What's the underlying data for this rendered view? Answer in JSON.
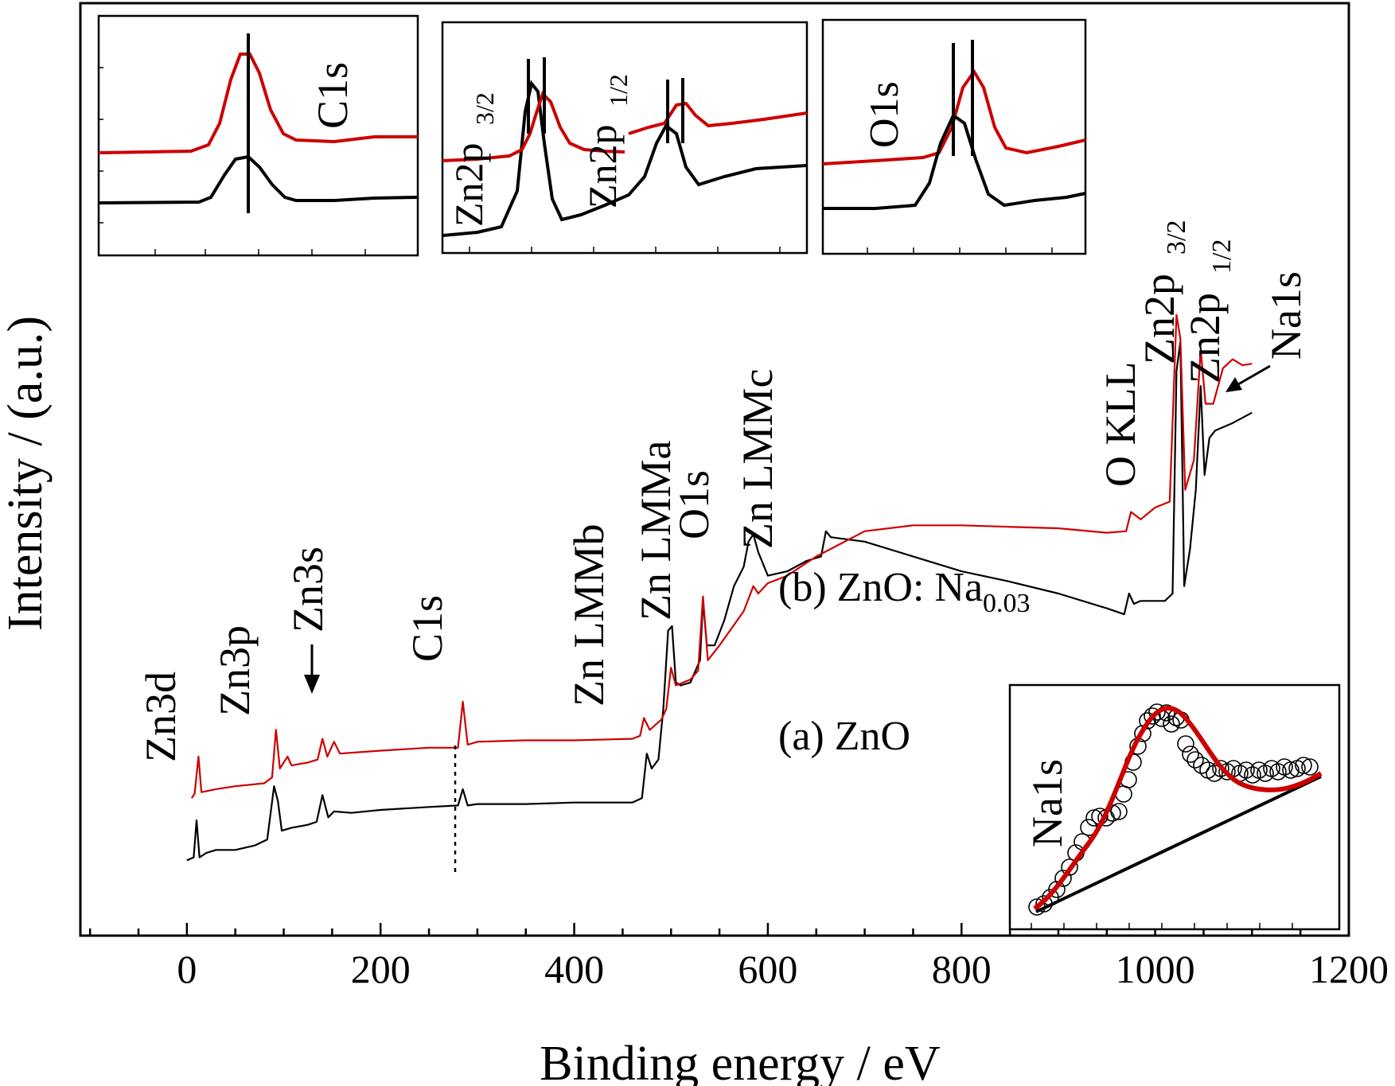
{
  "chart_data": {
    "type": "line",
    "xlabel": "Binding energy / eV",
    "ylabel": "Intensity / (a.u.)",
    "xlim": [
      -110,
      1200
    ],
    "x_ticks": [
      0,
      200,
      400,
      600,
      800,
      1000,
      1200
    ],
    "y_scale": "arbitrary units, no tick labels",
    "grid": false,
    "series": [
      {
        "name": "(a) ZnO",
        "color": "#000000",
        "points": [
          [
            0,
            0.1
          ],
          [
            7,
            0.12
          ],
          [
            10,
            0.37
          ],
          [
            13,
            0.12
          ],
          [
            20,
            0.15
          ],
          [
            30,
            0.17
          ],
          [
            50,
            0.17
          ],
          [
            70,
            0.2
          ],
          [
            83,
            0.24
          ],
          [
            90,
            0.6
          ],
          [
            94,
            0.5
          ],
          [
            98,
            0.3
          ],
          [
            108,
            0.32
          ],
          [
            125,
            0.34
          ],
          [
            134,
            0.36
          ],
          [
            140,
            0.54
          ],
          [
            146,
            0.39
          ],
          [
            152,
            0.43
          ],
          [
            170,
            0.42
          ],
          [
            200,
            0.44
          ],
          [
            250,
            0.46
          ],
          [
            280,
            0.47
          ],
          [
            285,
            0.58
          ],
          [
            290,
            0.47
          ],
          [
            300,
            0.48
          ],
          [
            350,
            0.48
          ],
          [
            400,
            0.49
          ],
          [
            460,
            0.49
          ],
          [
            470,
            0.52
          ],
          [
            475,
            0.82
          ],
          [
            480,
            0.72
          ],
          [
            487,
            0.78
          ],
          [
            492,
            1.12
          ],
          [
            497,
            1.65
          ],
          [
            501,
            1.68
          ],
          [
            505,
            1.3
          ],
          [
            510,
            1.28
          ],
          [
            520,
            1.3
          ],
          [
            530,
            1.45
          ],
          [
            533,
            1.85
          ],
          [
            537,
            1.55
          ],
          [
            545,
            1.55
          ],
          [
            555,
            1.72
          ],
          [
            565,
            1.95
          ],
          [
            575,
            2.08
          ],
          [
            580,
            2.25
          ],
          [
            585,
            2.3
          ],
          [
            590,
            2.18
          ],
          [
            600,
            2.02
          ],
          [
            620,
            2.05
          ],
          [
            640,
            2.12
          ],
          [
            655,
            2.15
          ],
          [
            660,
            2.32
          ],
          [
            665,
            2.28
          ],
          [
            700,
            2.25
          ],
          [
            750,
            2.15
          ],
          [
            800,
            2.05
          ],
          [
            850,
            1.98
          ],
          [
            900,
            1.9
          ],
          [
            950,
            1.8
          ],
          [
            968,
            1.76
          ],
          [
            973,
            1.9
          ],
          [
            978,
            1.83
          ],
          [
            985,
            1.85
          ],
          [
            1010,
            1.85
          ],
          [
            1018,
            1.9
          ],
          [
            1022,
            3.4
          ],
          [
            1026,
            3.6
          ],
          [
            1030,
            1.95
          ],
          [
            1036,
            2.2
          ],
          [
            1042,
            2.6
          ],
          [
            1047,
            3.3
          ],
          [
            1051,
            2.7
          ],
          [
            1056,
            2.95
          ],
          [
            1062,
            3.0
          ],
          [
            1080,
            3.05
          ],
          [
            1100,
            3.12
          ]
        ]
      },
      {
        "name": "(b) ZnO: Na0.03",
        "color": "#cc0000",
        "points": [
          [
            5,
            0.52
          ],
          [
            8,
            0.55
          ],
          [
            12,
            0.8
          ],
          [
            15,
            0.56
          ],
          [
            30,
            0.58
          ],
          [
            50,
            0.6
          ],
          [
            80,
            0.62
          ],
          [
            88,
            0.66
          ],
          [
            92,
            0.98
          ],
          [
            96,
            0.72
          ],
          [
            104,
            0.8
          ],
          [
            108,
            0.74
          ],
          [
            125,
            0.76
          ],
          [
            135,
            0.78
          ],
          [
            140,
            0.92
          ],
          [
            145,
            0.8
          ],
          [
            152,
            0.9
          ],
          [
            158,
            0.82
          ],
          [
            200,
            0.84
          ],
          [
            250,
            0.86
          ],
          [
            280,
            0.86
          ],
          [
            285,
            1.17
          ],
          [
            290,
            0.88
          ],
          [
            300,
            0.9
          ],
          [
            350,
            0.91
          ],
          [
            400,
            0.91
          ],
          [
            460,
            0.92
          ],
          [
            468,
            0.94
          ],
          [
            472,
            1.06
          ],
          [
            478,
            0.98
          ],
          [
            490,
            1.05
          ],
          [
            495,
            1.12
          ],
          [
            500,
            1.4
          ],
          [
            505,
            1.28
          ],
          [
            520,
            1.32
          ],
          [
            528,
            1.38
          ],
          [
            533,
            1.88
          ],
          [
            538,
            1.45
          ],
          [
            550,
            1.55
          ],
          [
            575,
            1.78
          ],
          [
            585,
            1.95
          ],
          [
            590,
            1.9
          ],
          [
            600,
            1.97
          ],
          [
            620,
            2.02
          ],
          [
            650,
            2.15
          ],
          [
            700,
            2.32
          ],
          [
            750,
            2.36
          ],
          [
            800,
            2.36
          ],
          [
            850,
            2.35
          ],
          [
            900,
            2.34
          ],
          [
            950,
            2.31
          ],
          [
            970,
            2.32
          ],
          [
            975,
            2.45
          ],
          [
            985,
            2.4
          ],
          [
            1000,
            2.48
          ],
          [
            1015,
            2.52
          ],
          [
            1022,
            3.78
          ],
          [
            1026,
            3.62
          ],
          [
            1031,
            2.6
          ],
          [
            1040,
            2.8
          ],
          [
            1047,
            3.55
          ],
          [
            1052,
            3.18
          ],
          [
            1060,
            3.18
          ],
          [
            1070,
            3.42
          ],
          [
            1080,
            3.48
          ],
          [
            1090,
            3.44
          ],
          [
            1100,
            3.45
          ]
        ]
      }
    ],
    "series_labels": [
      "(b) ZnO: Na",
      "0.03",
      "(a) ZnO"
    ],
    "annotations": [
      "Zn3d",
      "Zn3p",
      "Zn3s",
      "C1s",
      "Zn LMMb",
      "Zn LMMa",
      "O1s",
      "Zn LMMc",
      "O KLL",
      "Zn2p",
      "3/2",
      "Zn2p",
      "1/2",
      "Na1s"
    ],
    "insets": {
      "c1s_label": "C1s",
      "zn2p_label_a": "Zn2p",
      "zn2p_sub_a": "3/2",
      "zn2p_label_b": "Zn2p",
      "zn2p_sub_b": "1/2",
      "o1s_label": "O1s",
      "na1s_label": "Na1s"
    }
  }
}
